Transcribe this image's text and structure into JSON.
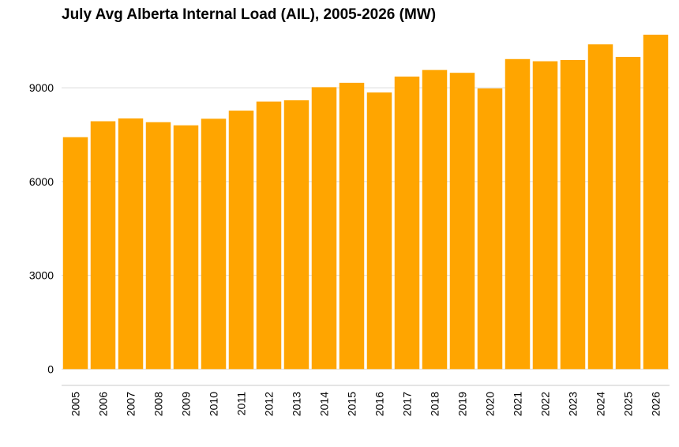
{
  "chart_data": {
    "type": "bar",
    "title": "July Avg Alberta Internal Load (AIL), 2005-2026 (MW)",
    "xlabel": "",
    "ylabel": "",
    "categories": [
      "2005",
      "2006",
      "2007",
      "2008",
      "2009",
      "2010",
      "2011",
      "2012",
      "2013",
      "2014",
      "2015",
      "2016",
      "2017",
      "2018",
      "2019",
      "2020",
      "2021",
      "2022",
      "2023",
      "2024",
      "2025",
      "2026"
    ],
    "values": [
      7420,
      7930,
      8020,
      7900,
      7800,
      8010,
      8270,
      8560,
      8600,
      9020,
      9160,
      8850,
      9360,
      9570,
      9480,
      8980,
      9920,
      9850,
      9890,
      10390,
      9990,
      10700
    ],
    "ylim": [
      -320,
      10900
    ],
    "yticks": [
      0,
      3000,
      6000,
      9000
    ],
    "grid": "horizontal",
    "legend": "none",
    "colors": {
      "bar": "#FFA500",
      "grid": "#dcdcdc",
      "axis": "#c8c8c8"
    }
  }
}
